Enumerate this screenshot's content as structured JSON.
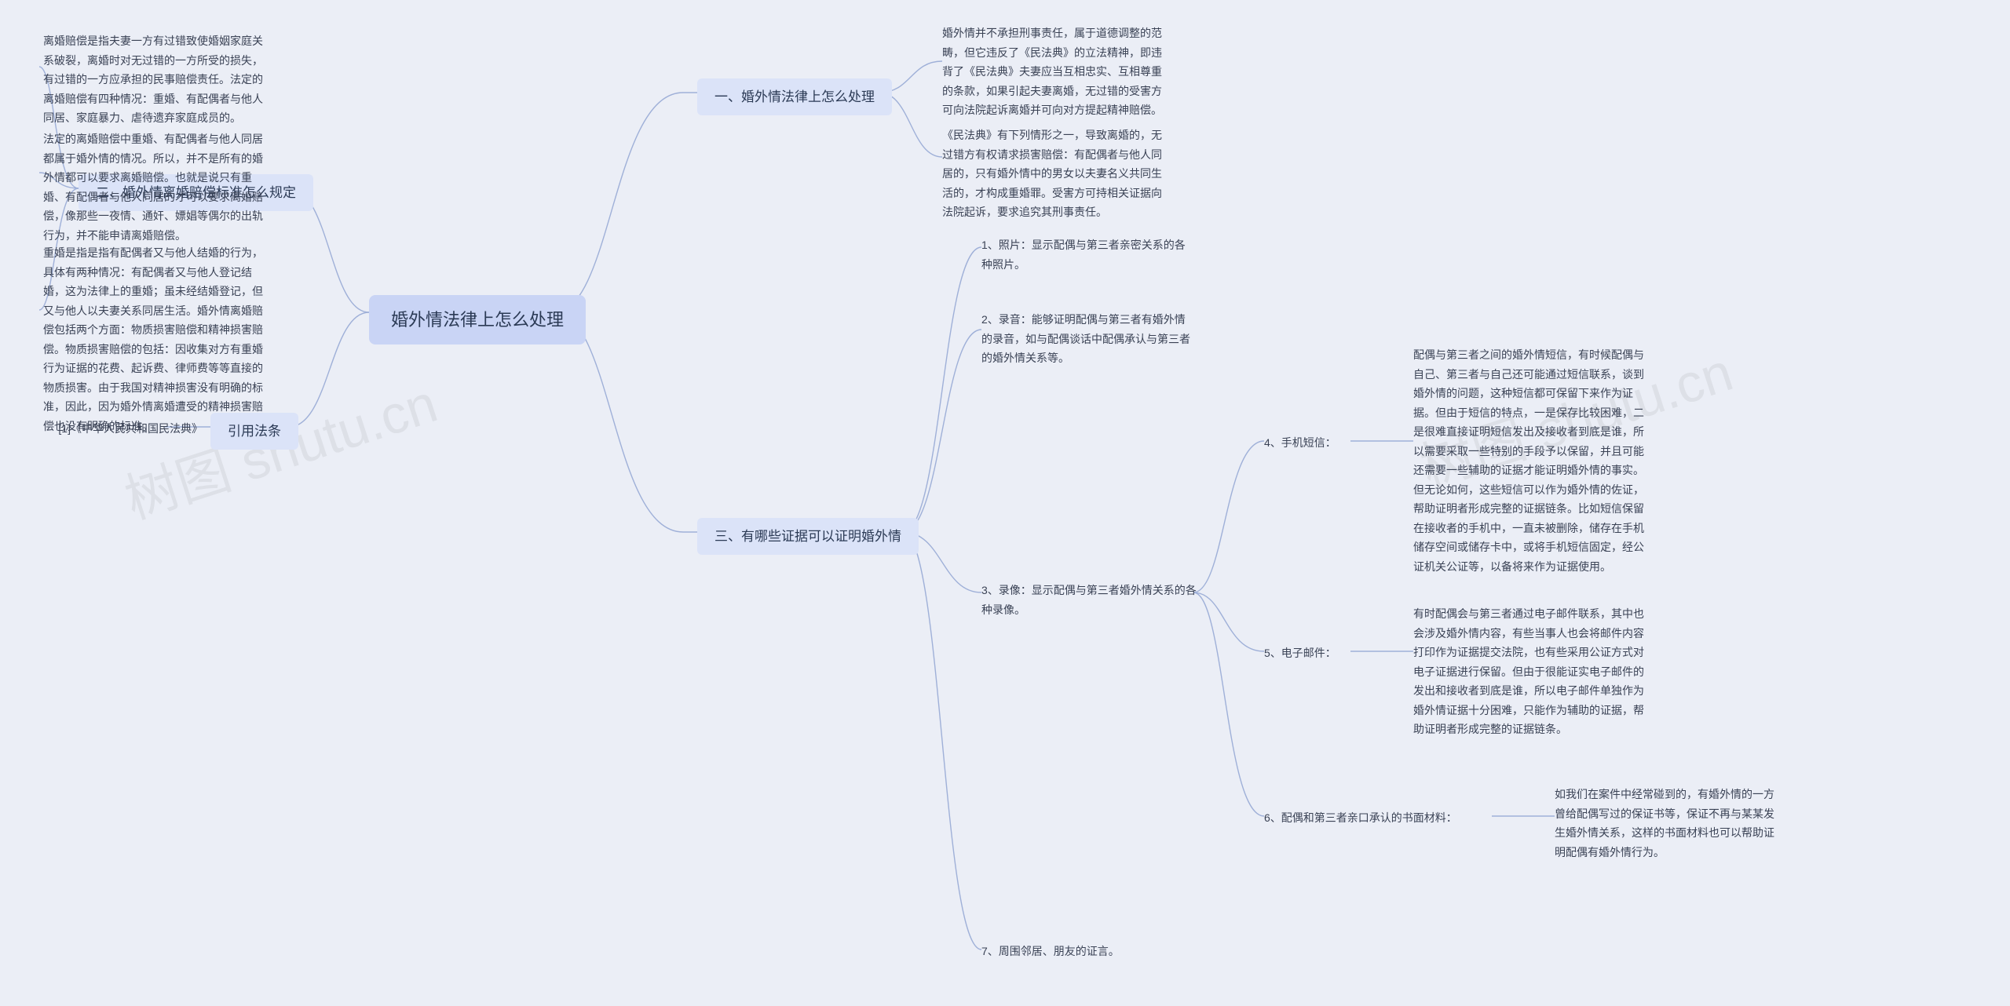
{
  "colors": {
    "page_bg": "#ebeef6",
    "center_bg": "#c9d4f5",
    "branch_bg": "#dbe3f8",
    "text": "#2b3a55",
    "leaf_text": "#3a4255",
    "connector": "#9fb0d8",
    "watermark": "rgba(120,120,120,0.12)"
  },
  "watermark_text": "树图 shutu.cn",
  "center": {
    "label": "婚外情法律上怎么处理"
  },
  "right": {
    "b1": {
      "label": "一、婚外情法律上怎么处理",
      "leaf1": "婚外情并不承担刑事责任，属于道德调整的范畴，但它违反了《民法典》的立法精神，即违背了《民法典》夫妻应当互相忠实、互相尊重的条款，如果引起夫妻离婚，无过错的受害方可向法院起诉离婚并可向对方提起精神赔偿。",
      "leaf2": "《民法典》有下列情形之一，导致离婚的，无过错方有权请求损害赔偿：有配偶者与他人同居的，只有婚外情中的男女以夫妻名义共同生活的，才构成重婚罪。受害方可持相关证据向法院起诉，要求追究其刑事责任。"
    },
    "b3": {
      "label": "三、有哪些证据可以证明婚外情",
      "leaf1": "1、照片：显示配偶与第三者亲密关系的各种照片。",
      "leaf2": "2、录音：能够证明配偶与第三者有婚外情的录音，如与配偶谈话中配偶承认与第三者的婚外情关系等。",
      "leaf3": "3、录像：显示配偶与第三者婚外情关系的各种录像。",
      "leaf7": "7、周围邻居、朋友的证言。",
      "sub4": {
        "label": "4、手机短信：",
        "text": "配偶与第三者之间的婚外情短信，有时候配偶与自己、第三者与自己还可能通过短信联系，谈到婚外情的问题，这种短信都可保留下来作为证据。但由于短信的特点，一是保存比较困难，二是很难直接证明短信发出及接收者到底是谁，所以需要采取一些特别的手段予以保留，并且可能还需要一些辅助的证据才能证明婚外情的事实。但无论如何，这些短信可以作为婚外情的佐证，帮助证明者形成完整的证据链条。比如短信保留在接收者的手机中，一直未被删除，储存在手机储存空间或储存卡中，或将手机短信固定，经公证机关公证等，以备将来作为证据使用。"
      },
      "sub5": {
        "label": "5、电子邮件：",
        "text": "有时配偶会与第三者通过电子邮件联系，其中也会涉及婚外情内容，有些当事人也会将邮件内容打印作为证据提交法院，也有些采用公证方式对电子证据进行保留。但由于很能证实电子邮件的发出和接收者到底是谁，所以电子邮件单独作为婚外情证据十分困难，只能作为辅助的证据，帮助证明者形成完整的证据链条。"
      },
      "sub6": {
        "label": "6、配偶和第三者亲口承认的书面材料：",
        "text": "如我们在案件中经常碰到的，有婚外情的一方曾给配偶写过的保证书等，保证不再与某某发生婚外情关系，这样的书面材料也可以帮助证明配偶有婚外情行为。"
      }
    }
  },
  "left": {
    "b2": {
      "label": "二、婚外情离婚赔偿标准怎么规定",
      "leaf1": "离婚赔偿是指夫妻一方有过错致使婚姻家庭关系破裂，离婚时对无过错的一方所受的损失，有过错的一方应承担的民事赔偿责任。法定的离婚赔偿有四种情况：重婚、有配偶者与他人同居、家庭暴力、虐待遗弃家庭成员的。",
      "leaf2": "法定的离婚赔偿中重婚、有配偶者与他人同居都属于婚外情的情况。所以，并不是所有的婚外情都可以要求离婚赔偿。也就是说只有重婚、有配偶者与他人同居的才可以要求离婚赔偿，像那些一夜情、通奸、嫖娼等偶尔的出轨行为，并不能申请离婚赔偿。",
      "leaf3": "重婚是指是指有配偶者又与他人结婚的行为，具体有两种情况：有配偶者又与他人登记结婚，这为法律上的重婚；虽未经结婚登记，但又与他人以夫妻关系同居生活。婚外情离婚赔偿包括两个方面：物质损害赔偿和精神损害赔偿。物质损害赔偿的包括：因收集对方有重婚行为证据的花费、起诉费、律师费等等直接的物质损害。由于我国对精神损害没有明确的标准，因此，因为婚外情离婚遭受的精神损害赔偿也没有明确的标准。"
    },
    "ref": {
      "label": "引用法条",
      "leaf": "[1]《中华人民共和国民法典》"
    }
  }
}
